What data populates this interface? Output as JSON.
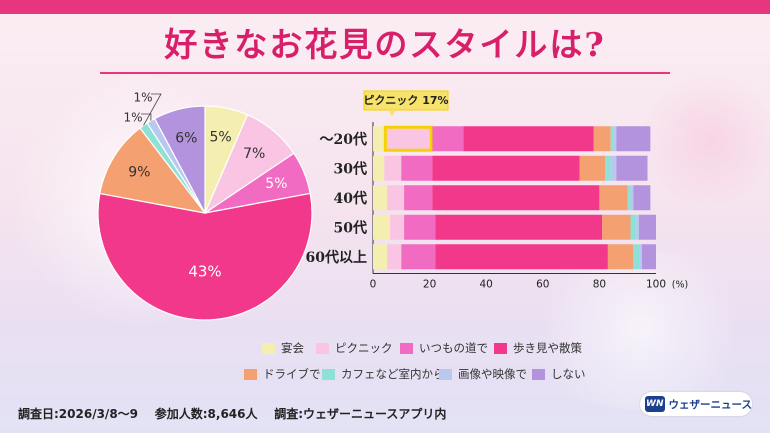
{
  "title": "好きなお花見のスタイルは?",
  "colors": {
    "accent": "#e8367e",
    "categories": [
      "#f4efb1",
      "#f9c5e2",
      "#f06bc1",
      "#f2388a",
      "#f5a070",
      "#8ee1d6",
      "#b9c8ef",
      "#b392de"
    ]
  },
  "legend": {
    "items": [
      "宴会",
      "ピクニック",
      "いつもの道で",
      "歩き見や散策",
      "ドライブで",
      "カフェなど室内から",
      "画像や映像で",
      "しない"
    ]
  },
  "callout": {
    "label": "ピクニック 17%",
    "category": "ピクニック",
    "row": "〜20代"
  },
  "chart_data": [
    {
      "type": "pie",
      "categories": [
        "宴会",
        "ピクニック",
        "いつもの道で",
        "歩き見や散策",
        "ドライブで",
        "カフェなど室内から",
        "画像や映像で",
        "しない"
      ],
      "values": [
        5,
        7,
        5,
        43,
        9,
        1,
        1,
        6
      ],
      "labels": [
        "5%",
        "7%",
        "5%",
        "43%",
        "9%",
        "1%",
        "1%",
        "6%"
      ]
    },
    {
      "type": "bar",
      "orientation": "horizontal",
      "stacked": true,
      "categories": [
        "〜20代",
        "30代",
        "40代",
        "50代",
        "60代以上"
      ],
      "series": [
        {
          "name": "宴会",
          "values": [
            4,
            4,
            5,
            6,
            5
          ]
        },
        {
          "name": "ピクニック",
          "values": [
            17,
            6,
            6,
            5,
            5
          ]
        },
        {
          "name": "いつもの道で",
          "values": [
            11,
            11,
            10,
            11,
            12
          ]
        },
        {
          "name": "歩き見や散策",
          "values": [
            46,
            52,
            59,
            59,
            61
          ]
        },
        {
          "name": "ドライブで",
          "values": [
            6,
            9,
            10,
            10,
            9
          ]
        },
        {
          "name": "カフェなど室内から",
          "values": [
            1,
            2,
            1,
            2,
            2
          ]
        },
        {
          "name": "画像や映像で",
          "values": [
            1,
            2,
            1,
            1,
            1
          ]
        },
        {
          "name": "しない",
          "values": [
            12,
            11,
            6,
            6,
            5
          ]
        }
      ],
      "xlim": [
        0,
        100
      ],
      "xticks": [
        "0",
        "20",
        "40",
        "60",
        "80",
        "100"
      ],
      "xunit": "(%)"
    }
  ],
  "footer": {
    "survey_date": "調査日:2026/3/8〜9",
    "participants": "参加人数:8,646人",
    "survey_by": "調査:ウェザーニュースアプリ内"
  },
  "logo": {
    "mark": "WN",
    "text": "ウェザーニュース"
  }
}
